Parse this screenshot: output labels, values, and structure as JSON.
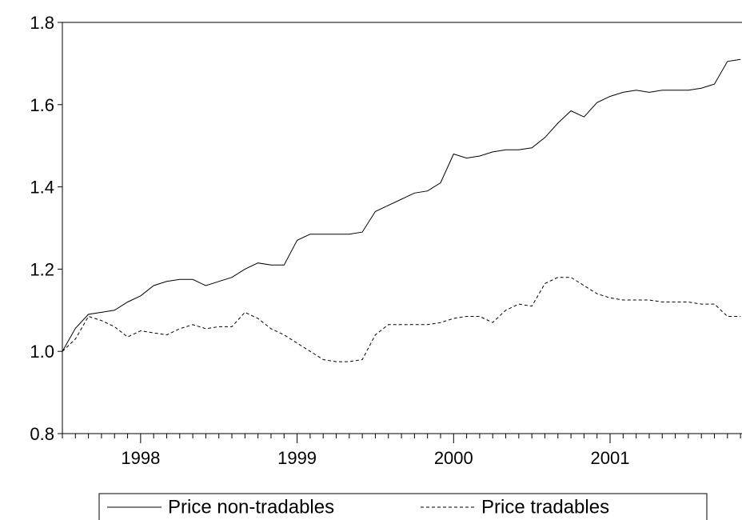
{
  "chart_data": {
    "type": "line",
    "categories": [
      null,
      null,
      null,
      null,
      null,
      null,
      "1998",
      null,
      null,
      null,
      null,
      null,
      null,
      null,
      null,
      null,
      null,
      null,
      "1999",
      null,
      null,
      null,
      null,
      null,
      null,
      null,
      null,
      null,
      null,
      null,
      "2000",
      null,
      null,
      null,
      null,
      null,
      null,
      null,
      null,
      null,
      null,
      null,
      "2001",
      null,
      null,
      null,
      null,
      null,
      null,
      null,
      null,
      null,
      null
    ],
    "series": [
      {
        "name": "Price non-tradables",
        "color": "#000000",
        "dash": "solid",
        "values": [
          1.0,
          1.056,
          1.09,
          1.095,
          1.1,
          1.12,
          1.135,
          1.16,
          1.17,
          1.175,
          1.175,
          1.16,
          1.17,
          1.18,
          1.2,
          1.215,
          1.21,
          1.21,
          1.27,
          1.285,
          1.285,
          1.285,
          1.285,
          1.29,
          1.34,
          1.355,
          1.37,
          1.385,
          1.39,
          1.41,
          1.48,
          1.47,
          1.475,
          1.485,
          1.49,
          1.49,
          1.495,
          1.52,
          1.555,
          1.585,
          1.57,
          1.605,
          1.62,
          1.63,
          1.635,
          1.63,
          1.635,
          1.635,
          1.635,
          1.64,
          1.65,
          1.705,
          1.71
        ]
      },
      {
        "name": "Price tradables",
        "color": "#000000",
        "dash": "dashed",
        "values": [
          1.0,
          1.03,
          1.085,
          1.075,
          1.06,
          1.035,
          1.05,
          1.045,
          1.04,
          1.055,
          1.065,
          1.055,
          1.06,
          1.06,
          1.095,
          1.08,
          1.055,
          1.04,
          1.02,
          1.0,
          0.98,
          0.975,
          0.975,
          0.98,
          1.04,
          1.065,
          1.065,
          1.065,
          1.065,
          1.07,
          1.08,
          1.085,
          1.085,
          1.07,
          1.1,
          1.115,
          1.11,
          1.165,
          1.18,
          1.18,
          1.16,
          1.14,
          1.13,
          1.125,
          1.125,
          1.125,
          1.12,
          1.12,
          1.12,
          1.115,
          1.115,
          1.085,
          1.085
        ]
      }
    ],
    "ylim": [
      0.8,
      1.8
    ],
    "yticks": [
      0.8,
      {
        "value": 1,
        "label": "1.0"
      },
      1.2,
      1.4,
      1.6,
      1.8
    ],
    "grid": false,
    "legend": "bottom"
  }
}
